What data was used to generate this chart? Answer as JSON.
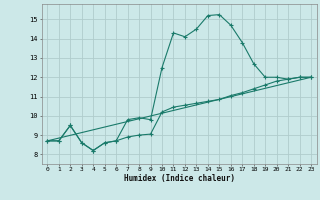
{
  "title": "",
  "xlabel": "Humidex (Indice chaleur)",
  "bg_color": "#cce8e8",
  "grid_color": "#b0cccc",
  "line_color": "#1a7a6a",
  "xlim": [
    -0.5,
    23.5
  ],
  "ylim": [
    7.5,
    15.8
  ],
  "yticks": [
    8,
    9,
    10,
    11,
    12,
    13,
    14,
    15
  ],
  "xticks": [
    0,
    1,
    2,
    3,
    4,
    5,
    6,
    7,
    8,
    9,
    10,
    11,
    12,
    13,
    14,
    15,
    16,
    17,
    18,
    19,
    20,
    21,
    22,
    23
  ],
  "line1_x": [
    0,
    1,
    2,
    3,
    4,
    5,
    6,
    7,
    8,
    9,
    10,
    11,
    12,
    13,
    14,
    15,
    16,
    17,
    18,
    19,
    20,
    21,
    22,
    23
  ],
  "line1_y": [
    8.7,
    8.7,
    9.5,
    8.6,
    8.2,
    8.6,
    8.7,
    9.8,
    9.9,
    9.8,
    12.5,
    14.3,
    14.1,
    14.5,
    15.2,
    15.25,
    14.7,
    13.8,
    12.7,
    12.0,
    12.0,
    11.9,
    12.0,
    12.0
  ],
  "line2_x": [
    0,
    1,
    2,
    3,
    4,
    5,
    6,
    7,
    8,
    9,
    10,
    11,
    12,
    13,
    14,
    15,
    16,
    17,
    18,
    19,
    20,
    21,
    22,
    23
  ],
  "line2_y": [
    8.7,
    8.7,
    9.5,
    8.6,
    8.2,
    8.6,
    8.7,
    8.9,
    9.0,
    9.05,
    10.2,
    10.45,
    10.55,
    10.65,
    10.75,
    10.85,
    11.05,
    11.2,
    11.4,
    11.6,
    11.8,
    11.9,
    12.0,
    12.0
  ],
  "line3_x": [
    0,
    23
  ],
  "line3_y": [
    8.7,
    12.0
  ]
}
